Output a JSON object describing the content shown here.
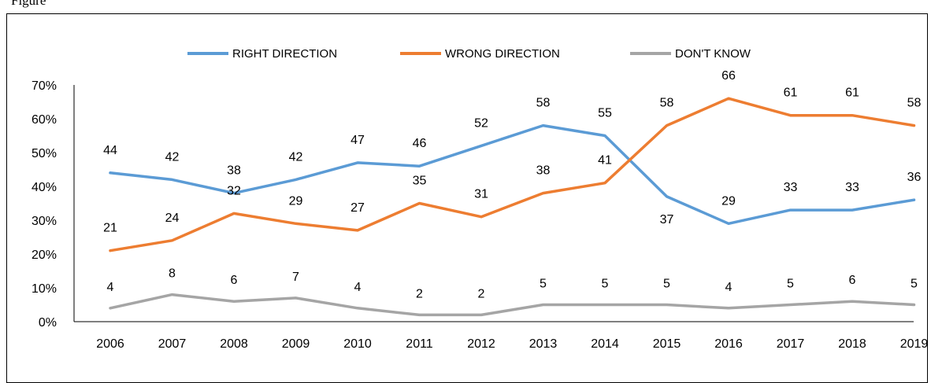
{
  "caption": "Figure",
  "chart_data": {
    "type": "line",
    "categories": [
      "2006",
      "2007",
      "2008",
      "2009",
      "2010",
      "2011",
      "2012",
      "2013",
      "2014",
      "2015",
      "2016",
      "2017",
      "2018",
      "2019"
    ],
    "y_ticks": [
      "0%",
      "10%",
      "20%",
      "30%",
      "40%",
      "50%",
      "60%",
      "70%"
    ],
    "ylim": [
      0,
      70
    ],
    "grid": false,
    "legend_position": "top",
    "series": [
      {
        "name": "RIGHT DIRECTION",
        "color": "#5b9bd5",
        "values": [
          44,
          42,
          38,
          42,
          47,
          46,
          52,
          58,
          55,
          37,
          29,
          33,
          33,
          36
        ],
        "labels": [
          "44",
          "42",
          "38",
          "42",
          "47",
          "46",
          "52",
          "58",
          "55",
          "37",
          "29",
          "33",
          "33",
          "36"
        ]
      },
      {
        "name": "WRONG DIRECTION",
        "color": "#ed7d31",
        "values": [
          21,
          24,
          32,
          29,
          27,
          35,
          31,
          38,
          41,
          58,
          66,
          61,
          61,
          58
        ],
        "labels": [
          "21",
          "24",
          "32",
          "29",
          "27",
          "35",
          "31",
          "38",
          "41",
          "58",
          "66",
          "61",
          "61",
          "58"
        ]
      },
      {
        "name": "DON'T KNOW",
        "color": "#a5a5a5",
        "values": [
          4,
          8,
          6,
          7,
          4,
          2,
          2,
          5,
          5,
          5,
          4,
          5,
          6,
          5
        ],
        "labels": [
          "4",
          "8",
          "6",
          "7",
          "4",
          "2",
          "2",
          "5",
          "5",
          "5",
          "4",
          "5",
          "6",
          "5"
        ]
      }
    ]
  }
}
